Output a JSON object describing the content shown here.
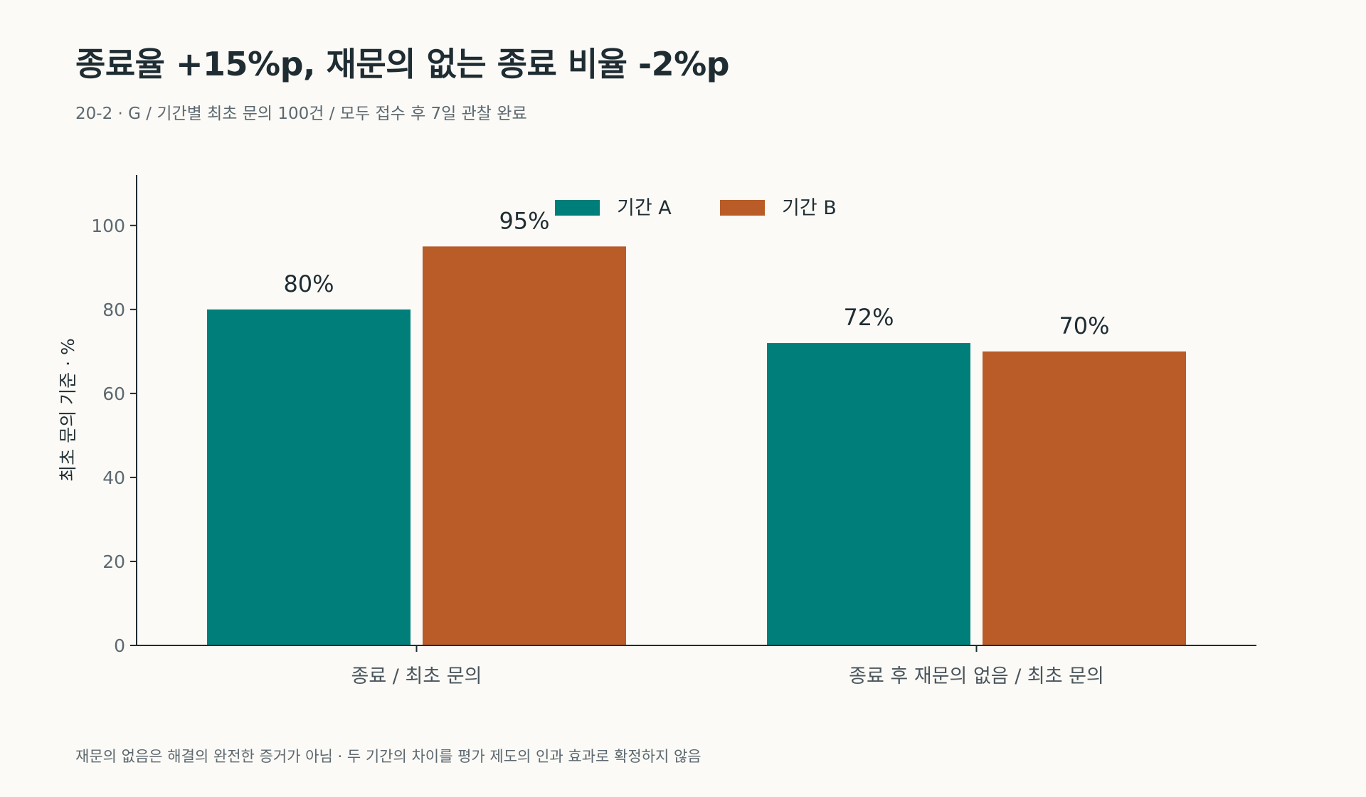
{
  "header": {
    "title": "종료율 +15%p, 재문의 없는 종료 비율 -2%p",
    "subtitle": "20-2 · G / 기간별 최초 문의 100건 / 모두 접수 후 7일 관찰 완료"
  },
  "footer": {
    "note": "재문의 없음은 해결의 완전한 증거가 아님 · 두 기간의 차이를 평가 제도의 인과 효과로 확정하지 않음"
  },
  "chart_data": {
    "type": "bar",
    "categories": [
      "종료 / 최초 문의",
      "종료 후 재문의 없음 / 최초 문의"
    ],
    "series": [
      {
        "name": "기간 A",
        "values": [
          80,
          72
        ],
        "labels": [
          "80%",
          "72%"
        ],
        "color": "#007f7a"
      },
      {
        "name": "기간 B",
        "values": [
          95,
          70
        ],
        "labels": [
          "95%",
          "70%"
        ],
        "color": "#b95c28"
      }
    ],
    "ylabel": "최초 문의 기준 · %",
    "ylim": [
      0,
      112
    ],
    "yticks": [
      0,
      20,
      40,
      60,
      80,
      100
    ],
    "legend": "top-center",
    "grid": false
  }
}
